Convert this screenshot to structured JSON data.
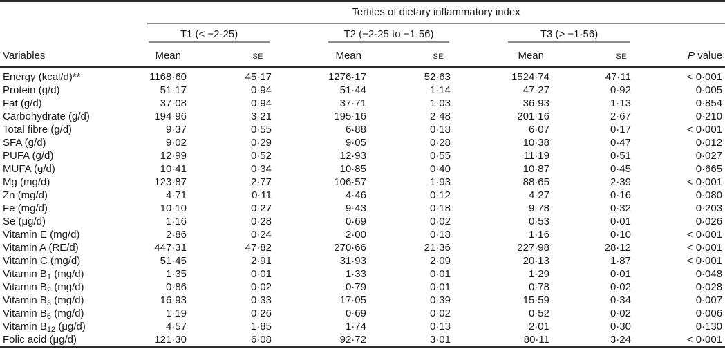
{
  "table": {
    "spanner": "Tertiles of dietary inflammatory index",
    "variables_header": "Variables",
    "groups": [
      {
        "label": "T1 (< −2·25)"
      },
      {
        "label": "T2 (−2·25 to −1·56)"
      },
      {
        "label": "T3 (> −1·56)"
      }
    ],
    "sub_headers": {
      "mean": "Mean",
      "se": "SE"
    },
    "p_header": {
      "p": "P",
      "rest": " value"
    },
    "rows": [
      {
        "variable": "Energy (kcal/d)**",
        "variable_sub": "",
        "variable_rest": "",
        "t1_mean": "1168·60",
        "t1_se": "45·17",
        "t2_mean": "1276·17",
        "t2_se": "52·63",
        "t3_mean": "1524·74",
        "t3_se": "47·11",
        "p": "< 0·001"
      },
      {
        "variable": "Protein (g/d)",
        "variable_sub": "",
        "variable_rest": "",
        "t1_mean": "51·17",
        "t1_se": "0·94",
        "t2_mean": "51·44",
        "t2_se": "1·14",
        "t3_mean": "47·27",
        "t3_se": "0·92",
        "p": "0·005"
      },
      {
        "variable": "Fat (g/d)",
        "variable_sub": "",
        "variable_rest": "",
        "t1_mean": "37·08",
        "t1_se": "0·94",
        "t2_mean": "37·71",
        "t2_se": "1·03",
        "t3_mean": "36·93",
        "t3_se": "1·13",
        "p": "0·854"
      },
      {
        "variable": "Carbohydrate (g/d)",
        "variable_sub": "",
        "variable_rest": "",
        "t1_mean": "194·96",
        "t1_se": "3·21",
        "t2_mean": "195·16",
        "t2_se": "2·48",
        "t3_mean": "201·16",
        "t3_se": "2·67",
        "p": "0·210"
      },
      {
        "variable": "Total fibre (g/d)",
        "variable_sub": "",
        "variable_rest": "",
        "t1_mean": "9·37",
        "t1_se": "0·55",
        "t2_mean": "6·88",
        "t2_se": "0·18",
        "t3_mean": "6·07",
        "t3_se": "0·17",
        "p": "< 0·001"
      },
      {
        "variable": "SFA (g/d)",
        "variable_sub": "",
        "variable_rest": "",
        "t1_mean": "9·02",
        "t1_se": "0·29",
        "t2_mean": "9·05",
        "t2_se": "0·28",
        "t3_mean": "10·38",
        "t3_se": "0·47",
        "p": "0·012"
      },
      {
        "variable": "PUFA (g/d)",
        "variable_sub": "",
        "variable_rest": "",
        "t1_mean": "12·99",
        "t1_se": "0·52",
        "t2_mean": "12·93",
        "t2_se": "0·55",
        "t3_mean": "11·19",
        "t3_se": "0·51",
        "p": "0·027"
      },
      {
        "variable": "MUFA (g/d)",
        "variable_sub": "",
        "variable_rest": "",
        "t1_mean": "10·41",
        "t1_se": "0·34",
        "t2_mean": "10·85",
        "t2_se": "0·40",
        "t3_mean": "10·87",
        "t3_se": "0·45",
        "p": "0·665"
      },
      {
        "variable": "Mg (mg/d)",
        "variable_sub": "",
        "variable_rest": "",
        "t1_mean": "123·87",
        "t1_se": "2·77",
        "t2_mean": "106·57",
        "t2_se": "1·93",
        "t3_mean": "88·65",
        "t3_se": "2·39",
        "p": "< 0·001"
      },
      {
        "variable": "Zn (mg/d)",
        "variable_sub": "",
        "variable_rest": "",
        "t1_mean": "4·71",
        "t1_se": "0·11",
        "t2_mean": "4·46",
        "t2_se": "0·12",
        "t3_mean": "4·27",
        "t3_se": "0·16",
        "p": "0·080"
      },
      {
        "variable": "Fe (mg/d)",
        "variable_sub": "",
        "variable_rest": "",
        "t1_mean": "10·10",
        "t1_se": "0·27",
        "t2_mean": "9·43",
        "t2_se": "0·18",
        "t3_mean": "9·78",
        "t3_se": "0·32",
        "p": "0·203"
      },
      {
        "variable": "Se (μg/d)",
        "variable_sub": "",
        "variable_rest": "",
        "t1_mean": "1·16",
        "t1_se": "0·28",
        "t2_mean": "0·69",
        "t2_se": "0·02",
        "t3_mean": "0·53",
        "t3_se": "0·01",
        "p": "0·026"
      },
      {
        "variable": "Vitamin E (mg/d)",
        "variable_sub": "",
        "variable_rest": "",
        "t1_mean": "2·86",
        "t1_se": "0·24",
        "t2_mean": "2·00",
        "t2_se": "0·18",
        "t3_mean": "1·16",
        "t3_se": "0·10",
        "p": "< 0·001"
      },
      {
        "variable": "Vitamin A (RE/d)",
        "variable_sub": "",
        "variable_rest": "",
        "t1_mean": "447·31",
        "t1_se": "47·82",
        "t2_mean": "270·66",
        "t2_se": "21·36",
        "t3_mean": "227·98",
        "t3_se": "28·12",
        "p": "< 0·001"
      },
      {
        "variable": "Vitamin C (mg/d)",
        "variable_sub": "",
        "variable_rest": "",
        "t1_mean": "51·45",
        "t1_se": "2·91",
        "t2_mean": "31·93",
        "t2_se": "2·09",
        "t3_mean": "20·13",
        "t3_se": "1·87",
        "p": "< 0·001"
      },
      {
        "variable": "Vitamin B",
        "variable_sub": "1",
        "variable_rest": " (mg/d)",
        "t1_mean": "1·35",
        "t1_se": "0·01",
        "t2_mean": "1·33",
        "t2_se": "0·01",
        "t3_mean": "1·29",
        "t3_se": "0·01",
        "p": "0·048"
      },
      {
        "variable": "Vitamin B",
        "variable_sub": "2",
        "variable_rest": " (mg/d)",
        "t1_mean": "0·86",
        "t1_se": "0·02",
        "t2_mean": "0·79",
        "t2_se": "0·01",
        "t3_mean": "0·78",
        "t3_se": "0·02",
        "p": "0·028"
      },
      {
        "variable": "Vitamin B",
        "variable_sub": "3",
        "variable_rest": " (mg/d)",
        "t1_mean": "16·93",
        "t1_se": "0·33",
        "t2_mean": "17·05",
        "t2_se": "0·39",
        "t3_mean": "15·59",
        "t3_se": "0·34",
        "p": "0·007"
      },
      {
        "variable": "Vitamin B",
        "variable_sub": "6",
        "variable_rest": " (mg/d)",
        "t1_mean": "1·19",
        "t1_se": "0·26",
        "t2_mean": "0·69",
        "t2_se": "0·02",
        "t3_mean": "0·52",
        "t3_se": "0·02",
        "p": "0·006"
      },
      {
        "variable": "Vitamin B",
        "variable_sub": "12",
        "variable_rest": " (μg/d)",
        "t1_mean": "4·57",
        "t1_se": "1·85",
        "t2_mean": "1·74",
        "t2_se": "0·13",
        "t3_mean": "2·01",
        "t3_se": "0·30",
        "p": "0·130"
      },
      {
        "variable": "Folic acid (μg/d)",
        "variable_sub": "",
        "variable_rest": "",
        "t1_mean": "121·30",
        "t1_se": "6·08",
        "t2_mean": "92·72",
        "t2_se": "3·01",
        "t3_mean": "80·11",
        "t3_se": "3·24",
        "p": "< 0·001"
      }
    ]
  },
  "colors": {
    "rule_thick": "#2b2b2b",
    "rule_thin": "#8c8c8c",
    "text": "#1a1a1a",
    "background": "#ffffff"
  }
}
